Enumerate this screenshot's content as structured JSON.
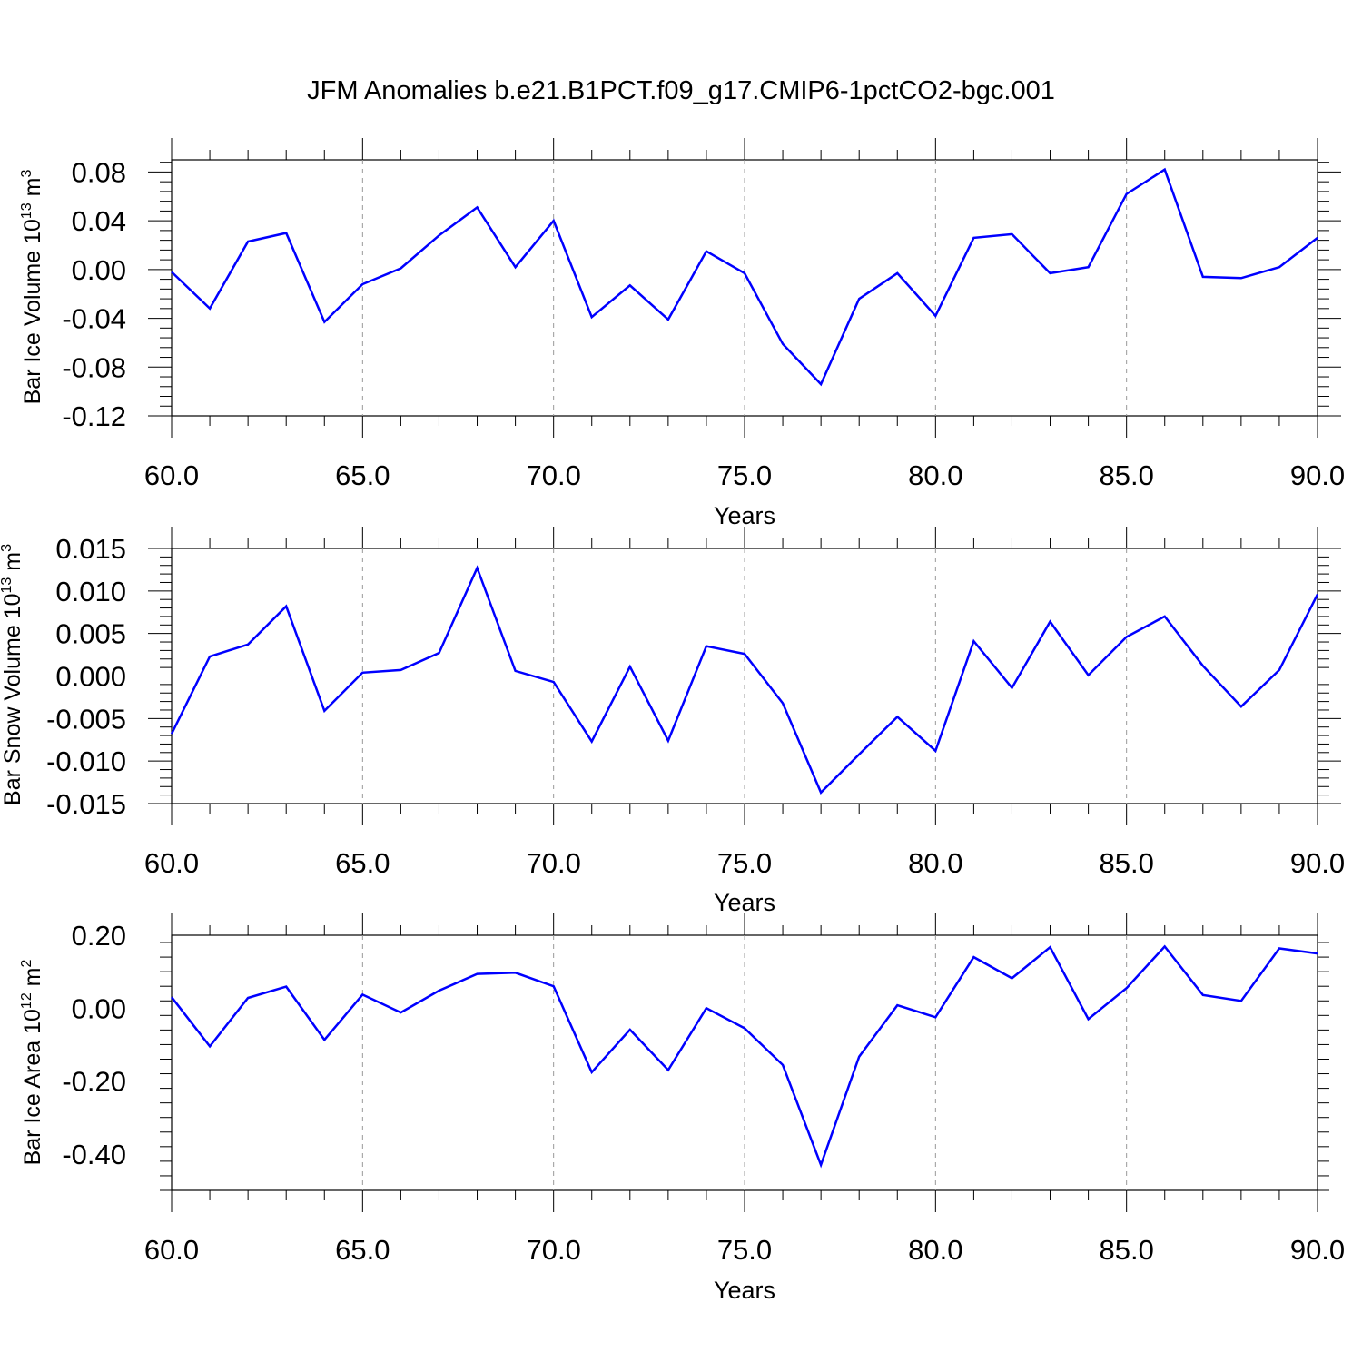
{
  "title": "JFM Anomalies b.e21.B1PCT.f09_g17.CMIP6-1pctCO2-bgc.001",
  "line_color": "#0000ff",
  "chart_data": [
    {
      "type": "line",
      "ylabel_main": "Bar Ice Volume 10",
      "ylabel_exp": "13",
      "ylabel_unit": " m",
      "ylabel_unit_exp": "3",
      "xlabel": "Years",
      "xlim": [
        60,
        90
      ],
      "ylim": [
        -0.12,
        0.09
      ],
      "xticks": [
        "60.0",
        "65.0",
        "70.0",
        "75.0",
        "80.0",
        "85.0",
        "90.0"
      ],
      "yticks": [
        "0.08",
        "0.04",
        "0.00",
        "-0.04",
        "-0.08",
        "-0.12"
      ],
      "x": [
        60,
        61,
        62,
        63,
        64,
        65,
        66,
        67,
        68,
        69,
        70,
        71,
        72,
        73,
        74,
        75,
        76,
        77,
        78,
        79,
        80,
        81,
        82,
        83,
        84,
        85,
        86,
        87,
        88,
        89,
        90
      ],
      "values": [
        -0.002,
        -0.032,
        0.023,
        0.03,
        -0.043,
        -0.012,
        0.001,
        0.028,
        0.051,
        0.002,
        0.04,
        -0.039,
        -0.013,
        -0.041,
        0.015,
        -0.003,
        -0.061,
        -0.094,
        -0.024,
        -0.003,
        -0.038,
        0.026,
        0.029,
        -0.003,
        0.002,
        0.062,
        0.082,
        -0.006,
        -0.007,
        0.002,
        0.026
      ]
    },
    {
      "type": "line",
      "ylabel_main": "Bar Snow Volume 10",
      "ylabel_exp": "13",
      "ylabel_unit": " m",
      "ylabel_unit_exp": "3",
      "xlabel": "Years",
      "xlim": [
        60,
        90
      ],
      "ylim": [
        -0.015,
        0.015
      ],
      "xticks": [
        "60.0",
        "65.0",
        "70.0",
        "75.0",
        "80.0",
        "85.0",
        "90.0"
      ],
      "yticks": [
        "0.015",
        "0.010",
        "0.005",
        "0.000",
        "-0.005",
        "-0.010",
        "-0.015"
      ],
      "x": [
        60,
        61,
        62,
        63,
        64,
        65,
        66,
        67,
        68,
        69,
        70,
        71,
        72,
        73,
        74,
        75,
        76,
        77,
        78,
        79,
        80,
        81,
        82,
        83,
        84,
        85,
        86,
        87,
        88,
        89,
        90
      ],
      "values": [
        -0.0068,
        0.0023,
        0.0037,
        0.0082,
        -0.0041,
        0.0004,
        0.0007,
        0.0027,
        0.0127,
        0.0006,
        -0.0007,
        -0.0077,
        0.0011,
        -0.0076,
        0.0035,
        0.0026,
        -0.0032,
        -0.0137,
        -0.0092,
        -0.0048,
        -0.0088,
        0.0041,
        -0.0014,
        0.0064,
        0.0001,
        0.0046,
        0.007,
        0.0012,
        -0.0036,
        0.0007,
        0.0096
      ]
    },
    {
      "type": "line",
      "ylabel_main": "Bar Ice Area 10",
      "ylabel_exp": "12",
      "ylabel_unit": " m",
      "ylabel_unit_exp": "2",
      "xlabel": "Years",
      "xlim": [
        60,
        90
      ],
      "ylim": [
        -0.5,
        0.2
      ],
      "xticks": [
        "60.0",
        "65.0",
        "70.0",
        "75.0",
        "80.0",
        "85.0",
        "90.0"
      ],
      "yticks": [
        "0.20",
        "0.00",
        "-0.20",
        "-0.40"
      ],
      "x": [
        60,
        61,
        62,
        63,
        64,
        65,
        66,
        67,
        68,
        69,
        70,
        71,
        72,
        73,
        74,
        75,
        76,
        77,
        78,
        79,
        80,
        81,
        82,
        83,
        84,
        85,
        86,
        87,
        88,
        89,
        90
      ],
      "values": [
        0.03,
        -0.105,
        0.028,
        0.059,
        -0.087,
        0.037,
        -0.012,
        0.048,
        0.094,
        0.097,
        0.06,
        -0.176,
        -0.059,
        -0.17,
        0.0,
        -0.055,
        -0.156,
        -0.43,
        -0.133,
        0.008,
        -0.025,
        0.14,
        0.082,
        0.167,
        -0.03,
        0.055,
        0.169,
        0.036,
        0.02,
        0.164,
        0.15
      ]
    }
  ]
}
